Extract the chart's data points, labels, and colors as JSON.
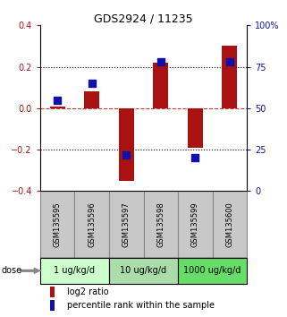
{
  "title": "GDS2924 / 11235",
  "samples": [
    "GSM135595",
    "GSM135596",
    "GSM135597",
    "GSM135598",
    "GSM135599",
    "GSM135600"
  ],
  "log2_ratio": [
    0.01,
    0.08,
    -0.35,
    0.22,
    -0.19,
    0.3
  ],
  "percentile_rank": [
    55,
    65,
    22,
    78,
    20,
    78
  ],
  "ylim_left": [
    -0.4,
    0.4
  ],
  "ylim_right": [
    0,
    100
  ],
  "yticks_left": [
    -0.4,
    -0.2,
    0.0,
    0.2,
    0.4
  ],
  "yticks_right": [
    0,
    25,
    50,
    75,
    100
  ],
  "ytick_labels_right": [
    "0",
    "25",
    "50",
    "75",
    "100%"
  ],
  "bar_color": "#AA1111",
  "dot_color": "#1111AA",
  "hline_color": "#CC3333",
  "dose_groups": [
    {
      "label": "1 ug/kg/d",
      "samples": [
        0,
        1
      ],
      "color": "#CCFFCC"
    },
    {
      "label": "10 ug/kg/d",
      "samples": [
        2,
        3
      ],
      "color": "#AADDAA"
    },
    {
      "label": "1000 ug/kg/d",
      "samples": [
        4,
        5
      ],
      "color": "#66DD66"
    }
  ],
  "legend_red": "log2 ratio",
  "legend_blue": "percentile rank within the sample",
  "bar_width": 0.45,
  "dot_size": 30,
  "sample_box_color": "#C8C8C8",
  "sample_box_edge_color": "#888888"
}
